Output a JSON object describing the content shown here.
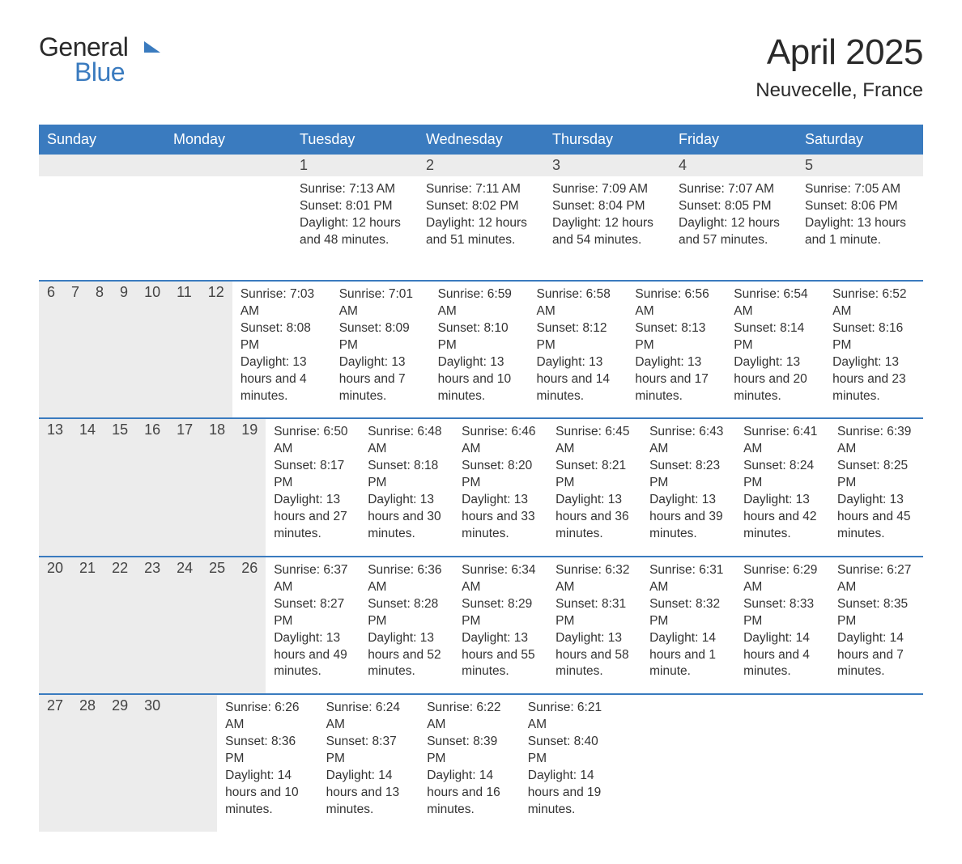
{
  "logo": {
    "line1": "General",
    "line2": "Blue",
    "flag_color": "#3a7bbf"
  },
  "header": {
    "month_title": "April 2025",
    "location": "Neuvecelle, France"
  },
  "colors": {
    "header_bg": "#3a7bbf",
    "daynum_bg": "#ececec",
    "row_divider": "#3a7bbf",
    "text": "#333333",
    "title_text": "#2a2a2a",
    "logo_blue": "#3a7bbf"
  },
  "typography": {
    "body_fontsize": 15.5,
    "header_fontsize": 18,
    "title_fontsize": 44,
    "location_fontsize": 24
  },
  "calendar": {
    "day_headers": [
      "Sunday",
      "Monday",
      "Tuesday",
      "Wednesday",
      "Thursday",
      "Friday",
      "Saturday"
    ],
    "weeks": [
      [
        {
          "day": "",
          "sunrise": "",
          "sunset": "",
          "daylight": ""
        },
        {
          "day": "",
          "sunrise": "",
          "sunset": "",
          "daylight": ""
        },
        {
          "day": "1",
          "sunrise": "Sunrise: 7:13 AM",
          "sunset": "Sunset: 8:01 PM",
          "daylight": "Daylight: 12 hours and 48 minutes."
        },
        {
          "day": "2",
          "sunrise": "Sunrise: 7:11 AM",
          "sunset": "Sunset: 8:02 PM",
          "daylight": "Daylight: 12 hours and 51 minutes."
        },
        {
          "day": "3",
          "sunrise": "Sunrise: 7:09 AM",
          "sunset": "Sunset: 8:04 PM",
          "daylight": "Daylight: 12 hours and 54 minutes."
        },
        {
          "day": "4",
          "sunrise": "Sunrise: 7:07 AM",
          "sunset": "Sunset: 8:05 PM",
          "daylight": "Daylight: 12 hours and 57 minutes."
        },
        {
          "day": "5",
          "sunrise": "Sunrise: 7:05 AM",
          "sunset": "Sunset: 8:06 PM",
          "daylight": "Daylight: 13 hours and 1 minute."
        }
      ],
      [
        {
          "day": "6",
          "sunrise": "Sunrise: 7:03 AM",
          "sunset": "Sunset: 8:08 PM",
          "daylight": "Daylight: 13 hours and 4 minutes."
        },
        {
          "day": "7",
          "sunrise": "Sunrise: 7:01 AM",
          "sunset": "Sunset: 8:09 PM",
          "daylight": "Daylight: 13 hours and 7 minutes."
        },
        {
          "day": "8",
          "sunrise": "Sunrise: 6:59 AM",
          "sunset": "Sunset: 8:10 PM",
          "daylight": "Daylight: 13 hours and 10 minutes."
        },
        {
          "day": "9",
          "sunrise": "Sunrise: 6:58 AM",
          "sunset": "Sunset: 8:12 PM",
          "daylight": "Daylight: 13 hours and 14 minutes."
        },
        {
          "day": "10",
          "sunrise": "Sunrise: 6:56 AM",
          "sunset": "Sunset: 8:13 PM",
          "daylight": "Daylight: 13 hours and 17 minutes."
        },
        {
          "day": "11",
          "sunrise": "Sunrise: 6:54 AM",
          "sunset": "Sunset: 8:14 PM",
          "daylight": "Daylight: 13 hours and 20 minutes."
        },
        {
          "day": "12",
          "sunrise": "Sunrise: 6:52 AM",
          "sunset": "Sunset: 8:16 PM",
          "daylight": "Daylight: 13 hours and 23 minutes."
        }
      ],
      [
        {
          "day": "13",
          "sunrise": "Sunrise: 6:50 AM",
          "sunset": "Sunset: 8:17 PM",
          "daylight": "Daylight: 13 hours and 27 minutes."
        },
        {
          "day": "14",
          "sunrise": "Sunrise: 6:48 AM",
          "sunset": "Sunset: 8:18 PM",
          "daylight": "Daylight: 13 hours and 30 minutes."
        },
        {
          "day": "15",
          "sunrise": "Sunrise: 6:46 AM",
          "sunset": "Sunset: 8:20 PM",
          "daylight": "Daylight: 13 hours and 33 minutes."
        },
        {
          "day": "16",
          "sunrise": "Sunrise: 6:45 AM",
          "sunset": "Sunset: 8:21 PM",
          "daylight": "Daylight: 13 hours and 36 minutes."
        },
        {
          "day": "17",
          "sunrise": "Sunrise: 6:43 AM",
          "sunset": "Sunset: 8:23 PM",
          "daylight": "Daylight: 13 hours and 39 minutes."
        },
        {
          "day": "18",
          "sunrise": "Sunrise: 6:41 AM",
          "sunset": "Sunset: 8:24 PM",
          "daylight": "Daylight: 13 hours and 42 minutes."
        },
        {
          "day": "19",
          "sunrise": "Sunrise: 6:39 AM",
          "sunset": "Sunset: 8:25 PM",
          "daylight": "Daylight: 13 hours and 45 minutes."
        }
      ],
      [
        {
          "day": "20",
          "sunrise": "Sunrise: 6:37 AM",
          "sunset": "Sunset: 8:27 PM",
          "daylight": "Daylight: 13 hours and 49 minutes."
        },
        {
          "day": "21",
          "sunrise": "Sunrise: 6:36 AM",
          "sunset": "Sunset: 8:28 PM",
          "daylight": "Daylight: 13 hours and 52 minutes."
        },
        {
          "day": "22",
          "sunrise": "Sunrise: 6:34 AM",
          "sunset": "Sunset: 8:29 PM",
          "daylight": "Daylight: 13 hours and 55 minutes."
        },
        {
          "day": "23",
          "sunrise": "Sunrise: 6:32 AM",
          "sunset": "Sunset: 8:31 PM",
          "daylight": "Daylight: 13 hours and 58 minutes."
        },
        {
          "day": "24",
          "sunrise": "Sunrise: 6:31 AM",
          "sunset": "Sunset: 8:32 PM",
          "daylight": "Daylight: 14 hours and 1 minute."
        },
        {
          "day": "25",
          "sunrise": "Sunrise: 6:29 AM",
          "sunset": "Sunset: 8:33 PM",
          "daylight": "Daylight: 14 hours and 4 minutes."
        },
        {
          "day": "26",
          "sunrise": "Sunrise: 6:27 AM",
          "sunset": "Sunset: 8:35 PM",
          "daylight": "Daylight: 14 hours and 7 minutes."
        }
      ],
      [
        {
          "day": "27",
          "sunrise": "Sunrise: 6:26 AM",
          "sunset": "Sunset: 8:36 PM",
          "daylight": "Daylight: 14 hours and 10 minutes."
        },
        {
          "day": "28",
          "sunrise": "Sunrise: 6:24 AM",
          "sunset": "Sunset: 8:37 PM",
          "daylight": "Daylight: 14 hours and 13 minutes."
        },
        {
          "day": "29",
          "sunrise": "Sunrise: 6:22 AM",
          "sunset": "Sunset: 8:39 PM",
          "daylight": "Daylight: 14 hours and 16 minutes."
        },
        {
          "day": "30",
          "sunrise": "Sunrise: 6:21 AM",
          "sunset": "Sunset: 8:40 PM",
          "daylight": "Daylight: 14 hours and 19 minutes."
        },
        {
          "day": "",
          "sunrise": "",
          "sunset": "",
          "daylight": ""
        },
        {
          "day": "",
          "sunrise": "",
          "sunset": "",
          "daylight": ""
        },
        {
          "day": "",
          "sunrise": "",
          "sunset": "",
          "daylight": ""
        }
      ]
    ]
  }
}
